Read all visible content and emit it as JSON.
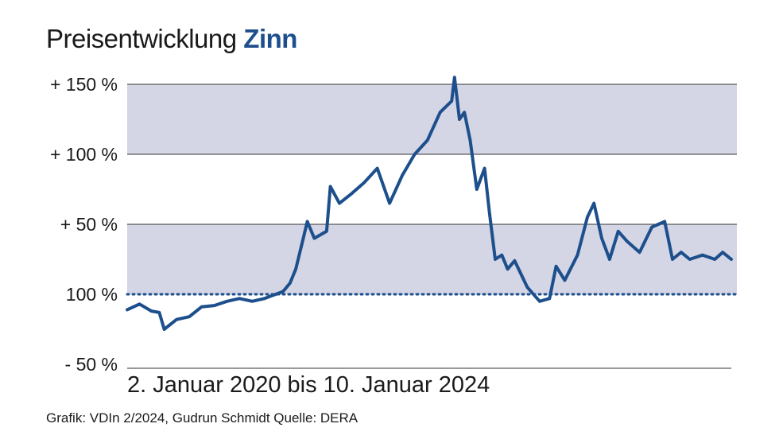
{
  "title": {
    "prefix": "Preisentwicklung",
    "highlight": "Zinn"
  },
  "subtitle": "2. Januar 2020 bis 10. Januar 2024",
  "source": "Grafik: VDIn 2/2024, Gudrun Schmidt Quelle: DERA",
  "colors": {
    "line": "#1d4f8c",
    "band": "#d4d5e5",
    "title_highlight": "#1d4f8c"
  },
  "chart_data": {
    "type": "line",
    "title": "Preisentwicklung Zinn",
    "xlabel": "2. Januar 2020 bis 10. Januar 2024",
    "ylabel": "",
    "y_tick_values": [
      -50,
      0,
      50,
      100,
      150
    ],
    "y_tick_labels": [
      "- 50 %",
      "100 %",
      "+ 50 %",
      "+ 100 %",
      "+ 150 %"
    ],
    "ylim": [
      -50,
      155
    ],
    "x": [
      "2020-01-02",
      "2020-02-01",
      "2020-03-01",
      "2020-03-20",
      "2020-04-01",
      "2020-05-01",
      "2020-06-01",
      "2020-07-01",
      "2020-08-01",
      "2020-09-01",
      "2020-10-01",
      "2020-11-01",
      "2020-12-01",
      "2021-01-15",
      "2021-02-01",
      "2021-02-15",
      "2021-03-01",
      "2021-03-15",
      "2021-04-01",
      "2021-05-01",
      "2021-05-10",
      "2021-06-01",
      "2021-07-01",
      "2021-08-01",
      "2021-09-01",
      "2021-10-01",
      "2021-11-01",
      "2021-12-01",
      "2022-01-01",
      "2022-02-01",
      "2022-03-01",
      "2022-03-08",
      "2022-03-20",
      "2022-04-01",
      "2022-04-15",
      "2022-05-01",
      "2022-05-20",
      "2022-06-01",
      "2022-06-15",
      "2022-07-01",
      "2022-07-15",
      "2022-08-01",
      "2022-09-01",
      "2022-10-01",
      "2022-10-25",
      "2022-11-10",
      "2022-12-01",
      "2023-01-01",
      "2023-01-25",
      "2023-02-10",
      "2023-03-01",
      "2023-03-20",
      "2023-04-10",
      "2023-05-01",
      "2023-06-01",
      "2023-07-01",
      "2023-08-01",
      "2023-08-20",
      "2023-09-10",
      "2023-10-01",
      "2023-11-01",
      "2023-12-01",
      "2023-12-20",
      "2024-01-10"
    ],
    "series": [
      {
        "values": [
          -11,
          -7,
          -12,
          -13,
          -25,
          -18,
          -16,
          -9,
          -8,
          -5,
          -3,
          -5,
          -3,
          2,
          8,
          18,
          35,
          52,
          40,
          45,
          77,
          65,
          72,
          80,
          90,
          65,
          85,
          100,
          110,
          130,
          138,
          155,
          125,
          130,
          110,
          75,
          90,
          58,
          25,
          28,
          18,
          24,
          5,
          -5,
          -3,
          20,
          10,
          28,
          55,
          65,
          40,
          25,
          45,
          38,
          30,
          48,
          52,
          25,
          30,
          25,
          28,
          25,
          30,
          25
        ]
      }
    ]
  }
}
